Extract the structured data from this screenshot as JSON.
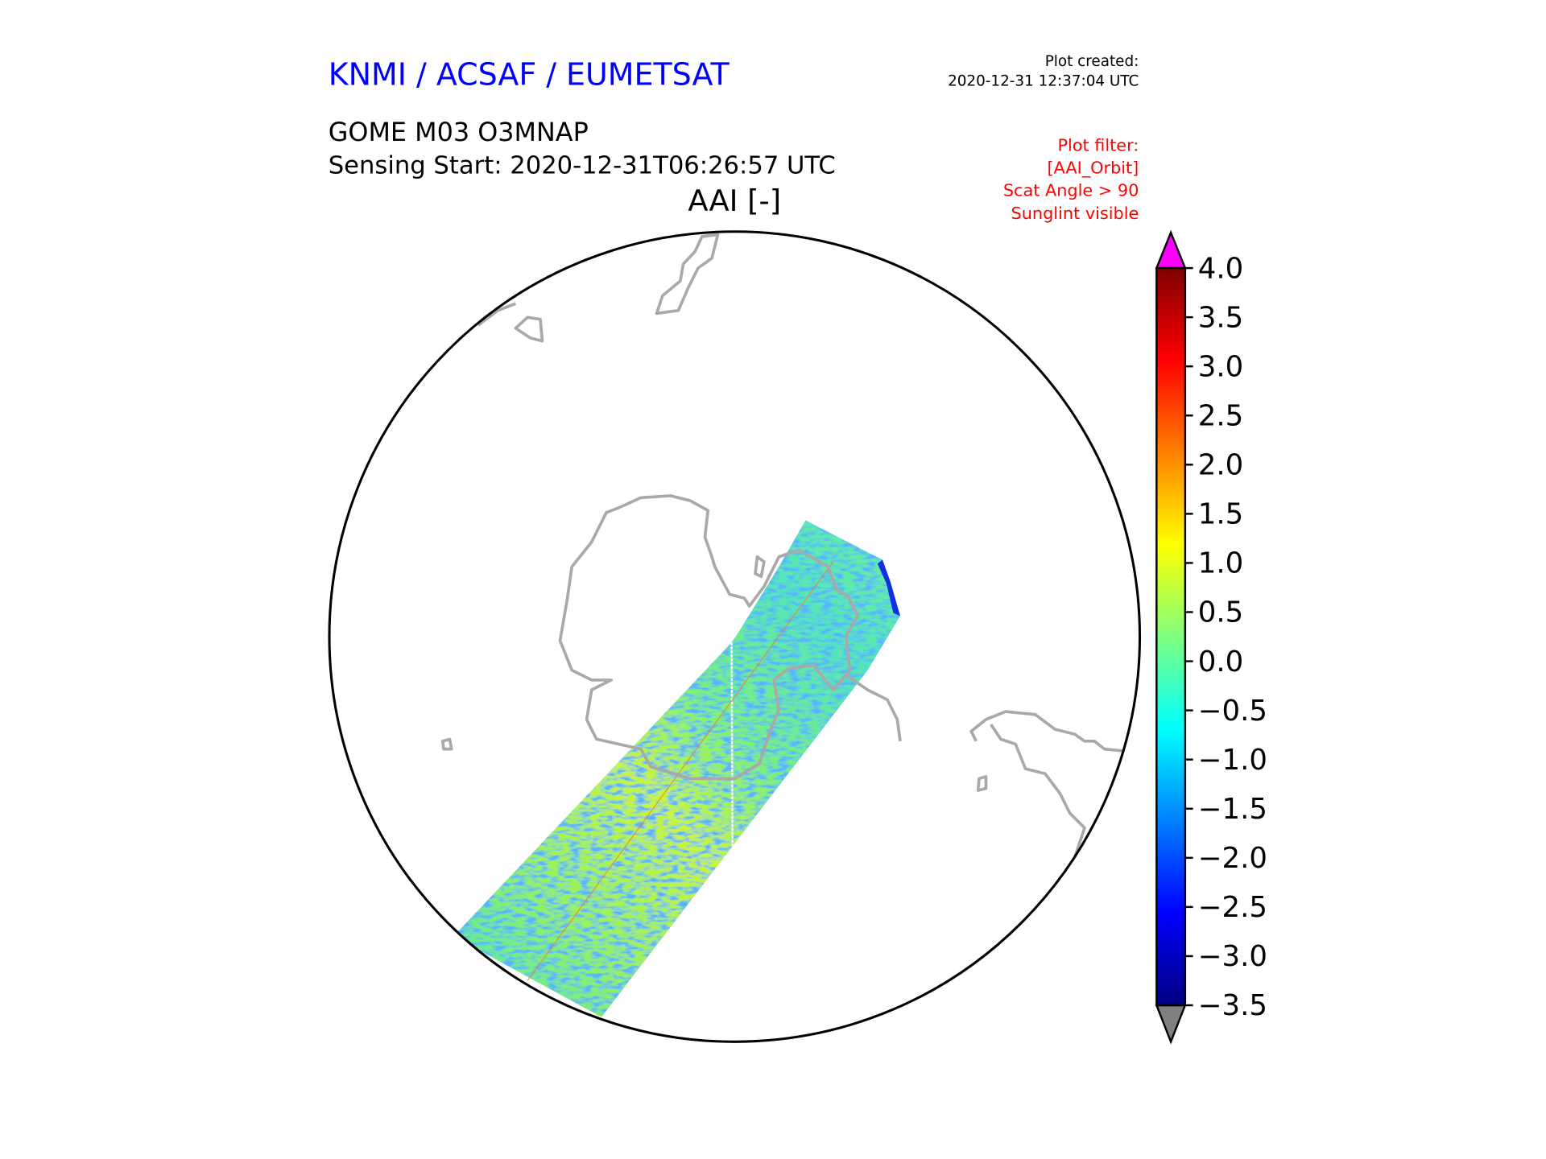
{
  "header": {
    "org": "KNMI / ACSAF / EUMETSAT",
    "plot_created_label": "Plot created:",
    "plot_created_time": "2020-12-31 12:37:04 UTC",
    "product": "GOME M03 O3MNAP",
    "sensing_start": "Sensing Start: 2020-12-31T06:26:57 UTC",
    "variable": "AAI [-]"
  },
  "filter": {
    "lines": [
      "Plot filter:",
      "[AAI_Orbit]",
      "Scat Angle > 90",
      "Sunglint visible"
    ]
  },
  "colors": {
    "org": "#0000ff",
    "filter": "#ff0000",
    "coastline": "#a9a9a9",
    "over": "#ff00ff",
    "under": "#808080"
  },
  "colorbar": {
    "min": -3.5,
    "max": 4.0,
    "colormap": "jet",
    "ticks": [
      "4.0",
      "3.5",
      "3.0",
      "2.5",
      "2.0",
      "1.5",
      "1.0",
      "0.5",
      "0.0",
      "−0.5",
      "−1.0",
      "−1.5",
      "−2.0",
      "−2.5",
      "−3.0",
      "−3.5"
    ],
    "tick_values": [
      4.0,
      3.5,
      3.0,
      2.5,
      2.0,
      1.5,
      1.0,
      0.5,
      0.0,
      -0.5,
      -1.0,
      -1.5,
      -2.0,
      -2.5,
      -3.0,
      -3.5
    ]
  }
}
